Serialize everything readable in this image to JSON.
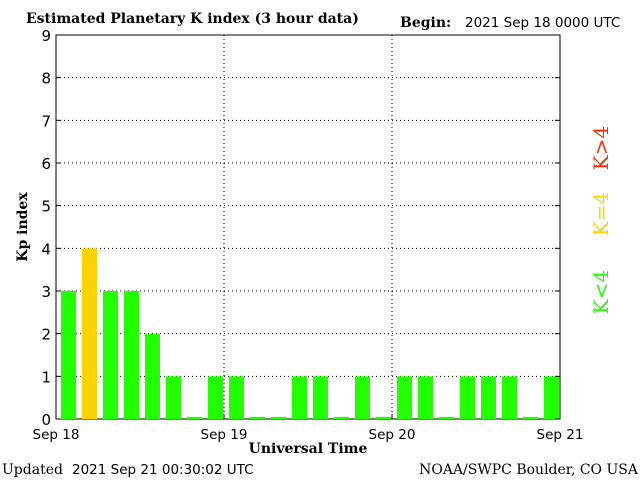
{
  "header": {
    "title": "Estimated Planetary K index (3 hour data)",
    "begin_label": "Begin:",
    "begin_value": "2021 Sep 18 0000 UTC"
  },
  "footer": {
    "updated_label": "Updated",
    "updated_value": "2021 Sep 21 00:30:02 UTC",
    "source": "NOAA/SWPC Boulder, CO USA"
  },
  "legend": {
    "high": "K>4",
    "mid": "K=4",
    "low": "K<4"
  },
  "colors": {
    "low": "#22ff00",
    "mid": "#ffd200",
    "high": "#ff2a00",
    "grid": "#000000",
    "axis": "#000000"
  },
  "chart_data": {
    "type": "bar",
    "title": "Estimated Planetary K index (3 hour data)",
    "xlabel": "Universal Time",
    "ylabel": "Kp index",
    "ylim": [
      0,
      9
    ],
    "yticks": [
      0,
      1,
      2,
      3,
      4,
      5,
      6,
      7,
      8,
      9
    ],
    "xtick_labels": [
      "Sep 18",
      "Sep 19",
      "Sep 20",
      "Sep 21"
    ],
    "bars_per_day": 8,
    "grid": true,
    "legend_placement": "right",
    "values": [
      3,
      4,
      3,
      3,
      2,
      1,
      0.05,
      1,
      1,
      0.05,
      0.05,
      1,
      1,
      0.05,
      1,
      0.05,
      1,
      1,
      0.05,
      1,
      1,
      1,
      0.05,
      1
    ]
  }
}
